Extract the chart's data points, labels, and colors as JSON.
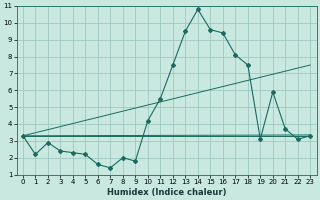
{
  "title": "",
  "xlabel": "Humidex (Indice chaleur)",
  "ylabel": "",
  "background_color": "#c8e8e0",
  "grid_color": "#a0c8c0",
  "line_color": "#1a6b60",
  "xlim": [
    -0.5,
    23.5
  ],
  "ylim": [
    1,
    11
  ],
  "xticks": [
    0,
    1,
    2,
    3,
    4,
    5,
    6,
    7,
    8,
    9,
    10,
    11,
    12,
    13,
    14,
    15,
    16,
    17,
    18,
    19,
    20,
    21,
    22,
    23
  ],
  "yticks": [
    1,
    2,
    3,
    4,
    5,
    6,
    7,
    8,
    9,
    10,
    11
  ],
  "main_curve_x": [
    0,
    1,
    2,
    3,
    4,
    5,
    6,
    7,
    8,
    9,
    10,
    11,
    12,
    13,
    14,
    15,
    16,
    17,
    18,
    19,
    20,
    21,
    22,
    23
  ],
  "main_curve_y": [
    3.3,
    2.2,
    2.9,
    2.4,
    2.3,
    2.2,
    1.6,
    1.4,
    2.0,
    1.8,
    4.2,
    5.5,
    7.5,
    9.5,
    10.8,
    9.6,
    9.4,
    8.1,
    7.5,
    3.1,
    5.9,
    3.7,
    3.1,
    3.3
  ],
  "ref_lines": [
    {
      "x": [
        0,
        23
      ],
      "y": [
        3.3,
        3.3
      ]
    },
    {
      "x": [
        0,
        23
      ],
      "y": [
        3.3,
        3.35
      ]
    },
    {
      "x": [
        0,
        23
      ],
      "y": [
        3.3,
        7.5
      ]
    }
  ]
}
